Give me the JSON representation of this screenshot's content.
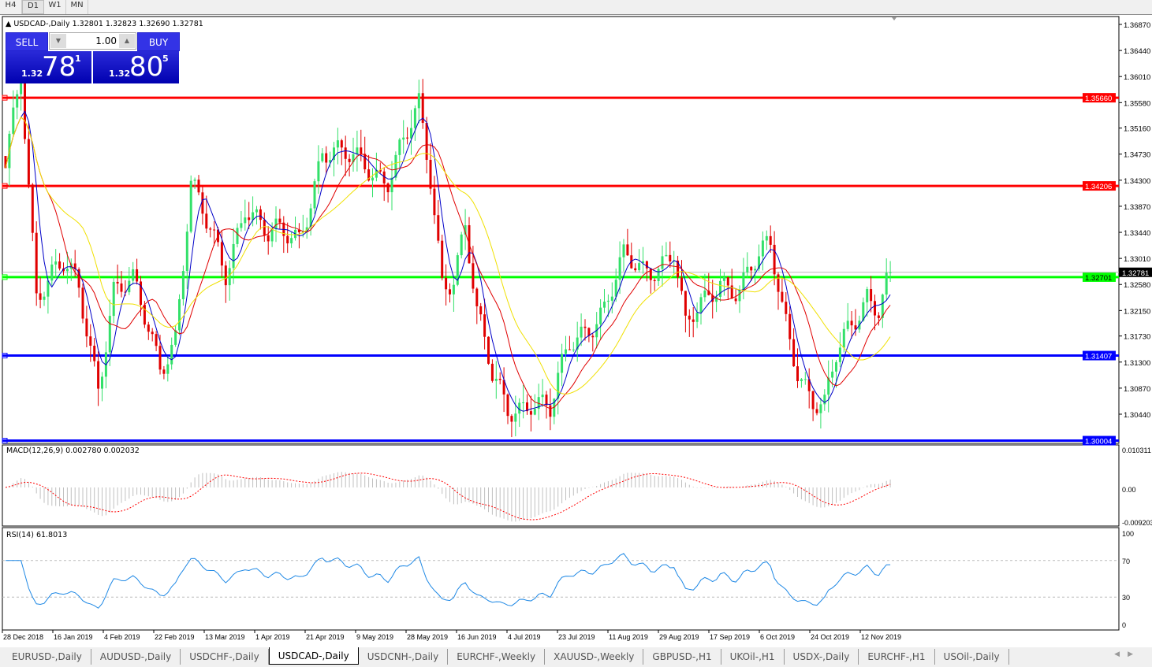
{
  "timeframes": [
    "H4",
    "D1",
    "W1",
    "MN"
  ],
  "active_timeframe": "D1",
  "chart": {
    "header": "USDCAD-,Daily  1.32801 1.32823 1.32690 1.32781"
  },
  "trade_panel": {
    "sell_label": "SELL",
    "buy_label": "BUY",
    "volume": "1.00",
    "sell_small": "1.32",
    "sell_big": "78",
    "sell_pip": "1",
    "buy_small": "1.32",
    "buy_big": "80",
    "buy_pip": "5",
    "down_icon": "triangle-down",
    "up_icon": "triangle-up"
  },
  "price_axis": [
    "1.36870",
    "1.36440",
    "1.36010",
    "1.35580",
    "1.35160",
    "1.34730",
    "1.34300",
    "1.33870",
    "1.33440",
    "1.33010",
    "1.32580",
    "1.32150",
    "1.31730",
    "1.31300",
    "1.30870",
    "1.30440"
  ],
  "hlines": [
    {
      "price": "1.35660",
      "color": "#ff0000"
    },
    {
      "price": "1.34206",
      "color": "#ff0000"
    },
    {
      "price": "1.32701",
      "color": "#00ff00"
    },
    {
      "price": "1.31407",
      "color": "#0000ff"
    },
    {
      "price": "1.30004",
      "color": "#0000ff"
    }
  ],
  "bid": "1.32781",
  "macd": {
    "label": "MACD(12,26,9) 0.002780 0.002032",
    "axis": [
      "0.010311",
      "0.00",
      "-0.009203"
    ]
  },
  "rsi": {
    "label": "RSI(14) 61.8013",
    "axis": [
      "100",
      "70",
      "30",
      "0"
    ]
  },
  "date_axis": [
    "28 Dec 2018",
    "16 Jan 2019",
    "4 Feb 2019",
    "22 Feb 2019",
    "13 Mar 2019",
    "1 Apr 2019",
    "21 Apr 2019",
    "9 May 2019",
    "28 May 2019",
    "16 Jun 2019",
    "4 Jul 2019",
    "23 Jul 2019",
    "11 Aug 2019",
    "29 Aug 2019",
    "17 Sep 2019",
    "6 Oct 2019",
    "24 Oct 2019",
    "12 Nov 2019"
  ],
  "colors": {
    "bull": "#33e06a",
    "bear": "#e00000",
    "ma_fast": "#0000c8",
    "ma_mid": "#e00000",
    "ma_slow": "#f0e000",
    "rsi": "#1e88e5",
    "macd_signal": "#ff0000",
    "macd_hist": "#c0c0c0"
  },
  "chart_data": {
    "type": "candlestick",
    "symbol": "USDCAD",
    "timeframe": "Daily",
    "close_anchors": [
      [
        0,
        1.345
      ],
      [
        4,
        1.362
      ],
      [
        8,
        1.325
      ],
      [
        15,
        1.328
      ],
      [
        19,
        1.325
      ],
      [
        24,
        1.31
      ],
      [
        28,
        1.325
      ],
      [
        33,
        1.325
      ],
      [
        40,
        1.313
      ],
      [
        44,
        1.318
      ],
      [
        48,
        1.342
      ],
      [
        52,
        1.335
      ],
      [
        57,
        1.328
      ],
      [
        62,
        1.34
      ],
      [
        68,
        1.333
      ],
      [
        76,
        1.334
      ],
      [
        82,
        1.348
      ],
      [
        87,
        1.346
      ],
      [
        93,
        1.346
      ],
      [
        99,
        1.344
      ],
      [
        104,
        1.35
      ],
      [
        107,
        1.354
      ],
      [
        110,
        1.343
      ],
      [
        113,
        1.327
      ],
      [
        116,
        1.328
      ],
      [
        119,
        1.336
      ],
      [
        122,
        1.32
      ],
      [
        126,
        1.31
      ],
      [
        130,
        1.306
      ],
      [
        136,
        1.307
      ],
      [
        141,
        1.304
      ],
      [
        146,
        1.316
      ],
      [
        151,
        1.32
      ],
      [
        155,
        1.322
      ],
      [
        160,
        1.329
      ],
      [
        165,
        1.328
      ],
      [
        169,
        1.33
      ],
      [
        173,
        1.332
      ],
      [
        176,
        1.318
      ],
      [
        181,
        1.322
      ],
      [
        185,
        1.327
      ],
      [
        190,
        1.326
      ],
      [
        194,
        1.329
      ],
      [
        198,
        1.331
      ],
      [
        201,
        1.322
      ],
      [
        205,
        1.313
      ],
      [
        209,
        1.307
      ],
      [
        212,
        1.305
      ],
      [
        215,
        1.313
      ],
      [
        219,
        1.319
      ],
      [
        223,
        1.325
      ],
      [
        226,
        1.323
      ],
      [
        229,
        1.3278
      ]
    ]
  }
}
